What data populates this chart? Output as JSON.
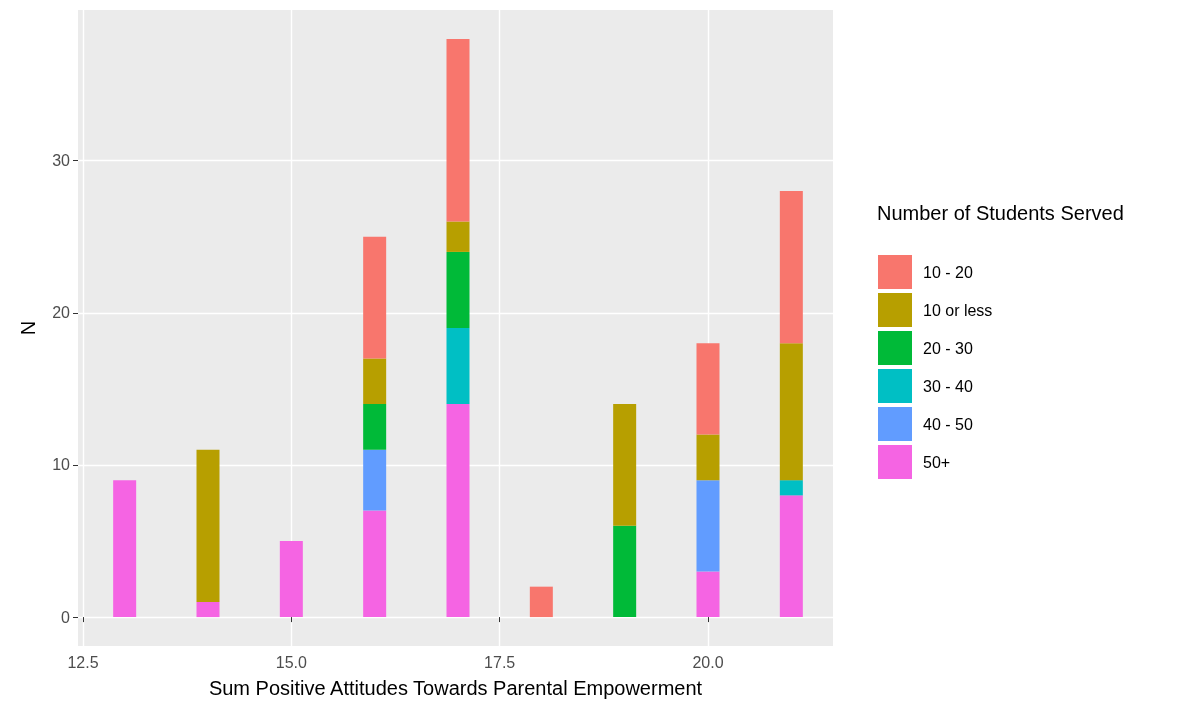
{
  "chart_data": {
    "type": "bar",
    "stacked": true,
    "xlabel": "Sum Positive Attitudes Towards Parental Empowerment",
    "ylabel": "N",
    "legend_title": "Number of Students Served",
    "x": [
      13,
      14,
      15,
      16,
      17,
      18,
      19,
      20,
      21
    ],
    "series": [
      {
        "name": "50+",
        "color": "#f564e3",
        "values": [
          9,
          1,
          5,
          7,
          14,
          0,
          0,
          3,
          8
        ]
      },
      {
        "name": "40 - 50",
        "color": "#619cff",
        "values": [
          0,
          0,
          0,
          4,
          0,
          0,
          0,
          6,
          0
        ]
      },
      {
        "name": "30 - 40",
        "color": "#00bfc4",
        "values": [
          0,
          0,
          0,
          0,
          5,
          0,
          0,
          0,
          1
        ]
      },
      {
        "name": "20 - 30",
        "color": "#00ba38",
        "values": [
          0,
          0,
          0,
          3,
          5,
          0,
          6,
          0,
          0
        ]
      },
      {
        "name": "10 or less",
        "color": "#b79f00",
        "values": [
          0,
          10,
          0,
          3,
          2,
          0,
          8,
          3,
          9
        ]
      },
      {
        "name": "10 - 20",
        "color": "#f8766d",
        "values": [
          0,
          0,
          0,
          8,
          12,
          2,
          0,
          6,
          10
        ]
      }
    ],
    "xlim": [
      12.44,
      21.5
    ],
    "xticks": [
      {
        "value": 12.5,
        "label": "12.5"
      },
      {
        "value": 15,
        "label": "15.0"
      },
      {
        "value": 17.5,
        "label": "17.5"
      },
      {
        "value": 20,
        "label": "20.0"
      }
    ],
    "ylim": [
      -1.9,
      39.9
    ],
    "yticks": [
      0,
      10,
      20,
      30
    ],
    "grid": true,
    "legend": "right"
  }
}
